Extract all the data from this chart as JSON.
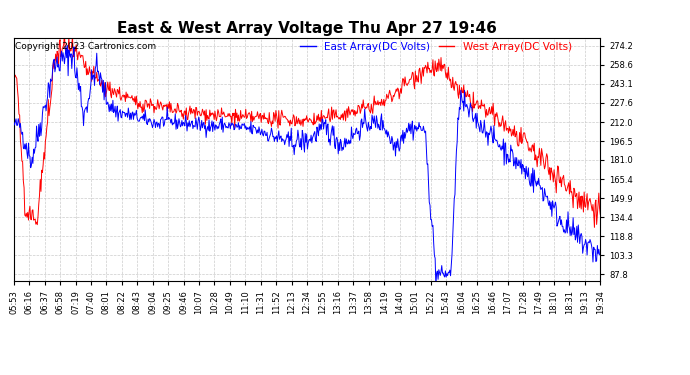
{
  "title": "East & West Array Voltage Thu Apr 27 19:46",
  "copyright": "Copyright 2023 Cartronics.com",
  "legend_east": "East Array(DC Volts)",
  "legend_west": "West Array(DC Volts)",
  "east_color": "blue",
  "west_color": "red",
  "background_color": "#ffffff",
  "grid_color": "#cccccc",
  "ylim": [
    82,
    281
  ],
  "yticks": [
    87.8,
    103.3,
    118.8,
    134.4,
    149.9,
    165.4,
    181.0,
    196.5,
    212.0,
    227.6,
    243.1,
    258.6,
    274.2
  ],
  "xtick_labels": [
    "05:53",
    "06:16",
    "06:37",
    "06:58",
    "07:19",
    "07:40",
    "08:01",
    "08:22",
    "08:43",
    "09:04",
    "09:25",
    "09:46",
    "10:07",
    "10:28",
    "10:49",
    "11:10",
    "11:31",
    "11:52",
    "12:13",
    "12:34",
    "12:55",
    "13:16",
    "13:37",
    "13:58",
    "14:19",
    "14:40",
    "15:01",
    "15:22",
    "15:43",
    "16:04",
    "16:25",
    "16:46",
    "17:07",
    "17:28",
    "17:49",
    "18:10",
    "18:31",
    "19:13",
    "19:34"
  ],
  "title_fontsize": 11,
  "copyright_fontsize": 6.5,
  "legend_fontsize": 7.5,
  "axis_fontsize": 6,
  "line_width": 0.7
}
